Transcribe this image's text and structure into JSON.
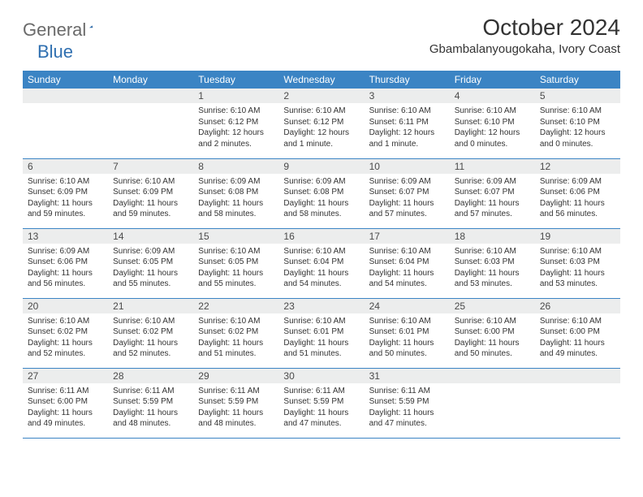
{
  "brand": {
    "general": "General",
    "blue": "Blue"
  },
  "title": "October 2024",
  "location": "Gbambalanyougokaha, Ivory Coast",
  "colors": {
    "header_bg": "#3b84c4",
    "header_text": "#ffffff",
    "daynum_bg": "#eceded",
    "border": "#3b84c4",
    "logo_gray": "#6a6a6a",
    "logo_blue": "#2f6fb0"
  },
  "weekdays": [
    "Sunday",
    "Monday",
    "Tuesday",
    "Wednesday",
    "Thursday",
    "Friday",
    "Saturday"
  ],
  "weeks": [
    [
      null,
      null,
      {
        "n": "1",
        "sr": "Sunrise: 6:10 AM",
        "ss": "Sunset: 6:12 PM",
        "dl": "Daylight: 12 hours and 2 minutes."
      },
      {
        "n": "2",
        "sr": "Sunrise: 6:10 AM",
        "ss": "Sunset: 6:12 PM",
        "dl": "Daylight: 12 hours and 1 minute."
      },
      {
        "n": "3",
        "sr": "Sunrise: 6:10 AM",
        "ss": "Sunset: 6:11 PM",
        "dl": "Daylight: 12 hours and 1 minute."
      },
      {
        "n": "4",
        "sr": "Sunrise: 6:10 AM",
        "ss": "Sunset: 6:10 PM",
        "dl": "Daylight: 12 hours and 0 minutes."
      },
      {
        "n": "5",
        "sr": "Sunrise: 6:10 AM",
        "ss": "Sunset: 6:10 PM",
        "dl": "Daylight: 12 hours and 0 minutes."
      }
    ],
    [
      {
        "n": "6",
        "sr": "Sunrise: 6:10 AM",
        "ss": "Sunset: 6:09 PM",
        "dl": "Daylight: 11 hours and 59 minutes."
      },
      {
        "n": "7",
        "sr": "Sunrise: 6:10 AM",
        "ss": "Sunset: 6:09 PM",
        "dl": "Daylight: 11 hours and 59 minutes."
      },
      {
        "n": "8",
        "sr": "Sunrise: 6:09 AM",
        "ss": "Sunset: 6:08 PM",
        "dl": "Daylight: 11 hours and 58 minutes."
      },
      {
        "n": "9",
        "sr": "Sunrise: 6:09 AM",
        "ss": "Sunset: 6:08 PM",
        "dl": "Daylight: 11 hours and 58 minutes."
      },
      {
        "n": "10",
        "sr": "Sunrise: 6:09 AM",
        "ss": "Sunset: 6:07 PM",
        "dl": "Daylight: 11 hours and 57 minutes."
      },
      {
        "n": "11",
        "sr": "Sunrise: 6:09 AM",
        "ss": "Sunset: 6:07 PM",
        "dl": "Daylight: 11 hours and 57 minutes."
      },
      {
        "n": "12",
        "sr": "Sunrise: 6:09 AM",
        "ss": "Sunset: 6:06 PM",
        "dl": "Daylight: 11 hours and 56 minutes."
      }
    ],
    [
      {
        "n": "13",
        "sr": "Sunrise: 6:09 AM",
        "ss": "Sunset: 6:06 PM",
        "dl": "Daylight: 11 hours and 56 minutes."
      },
      {
        "n": "14",
        "sr": "Sunrise: 6:09 AM",
        "ss": "Sunset: 6:05 PM",
        "dl": "Daylight: 11 hours and 55 minutes."
      },
      {
        "n": "15",
        "sr": "Sunrise: 6:10 AM",
        "ss": "Sunset: 6:05 PM",
        "dl": "Daylight: 11 hours and 55 minutes."
      },
      {
        "n": "16",
        "sr": "Sunrise: 6:10 AM",
        "ss": "Sunset: 6:04 PM",
        "dl": "Daylight: 11 hours and 54 minutes."
      },
      {
        "n": "17",
        "sr": "Sunrise: 6:10 AM",
        "ss": "Sunset: 6:04 PM",
        "dl": "Daylight: 11 hours and 54 minutes."
      },
      {
        "n": "18",
        "sr": "Sunrise: 6:10 AM",
        "ss": "Sunset: 6:03 PM",
        "dl": "Daylight: 11 hours and 53 minutes."
      },
      {
        "n": "19",
        "sr": "Sunrise: 6:10 AM",
        "ss": "Sunset: 6:03 PM",
        "dl": "Daylight: 11 hours and 53 minutes."
      }
    ],
    [
      {
        "n": "20",
        "sr": "Sunrise: 6:10 AM",
        "ss": "Sunset: 6:02 PM",
        "dl": "Daylight: 11 hours and 52 minutes."
      },
      {
        "n": "21",
        "sr": "Sunrise: 6:10 AM",
        "ss": "Sunset: 6:02 PM",
        "dl": "Daylight: 11 hours and 52 minutes."
      },
      {
        "n": "22",
        "sr": "Sunrise: 6:10 AM",
        "ss": "Sunset: 6:02 PM",
        "dl": "Daylight: 11 hours and 51 minutes."
      },
      {
        "n": "23",
        "sr": "Sunrise: 6:10 AM",
        "ss": "Sunset: 6:01 PM",
        "dl": "Daylight: 11 hours and 51 minutes."
      },
      {
        "n": "24",
        "sr": "Sunrise: 6:10 AM",
        "ss": "Sunset: 6:01 PM",
        "dl": "Daylight: 11 hours and 50 minutes."
      },
      {
        "n": "25",
        "sr": "Sunrise: 6:10 AM",
        "ss": "Sunset: 6:00 PM",
        "dl": "Daylight: 11 hours and 50 minutes."
      },
      {
        "n": "26",
        "sr": "Sunrise: 6:10 AM",
        "ss": "Sunset: 6:00 PM",
        "dl": "Daylight: 11 hours and 49 minutes."
      }
    ],
    [
      {
        "n": "27",
        "sr": "Sunrise: 6:11 AM",
        "ss": "Sunset: 6:00 PM",
        "dl": "Daylight: 11 hours and 49 minutes."
      },
      {
        "n": "28",
        "sr": "Sunrise: 6:11 AM",
        "ss": "Sunset: 5:59 PM",
        "dl": "Daylight: 11 hours and 48 minutes."
      },
      {
        "n": "29",
        "sr": "Sunrise: 6:11 AM",
        "ss": "Sunset: 5:59 PM",
        "dl": "Daylight: 11 hours and 48 minutes."
      },
      {
        "n": "30",
        "sr": "Sunrise: 6:11 AM",
        "ss": "Sunset: 5:59 PM",
        "dl": "Daylight: 11 hours and 47 minutes."
      },
      {
        "n": "31",
        "sr": "Sunrise: 6:11 AM",
        "ss": "Sunset: 5:59 PM",
        "dl": "Daylight: 11 hours and 47 minutes."
      },
      null,
      null
    ]
  ]
}
